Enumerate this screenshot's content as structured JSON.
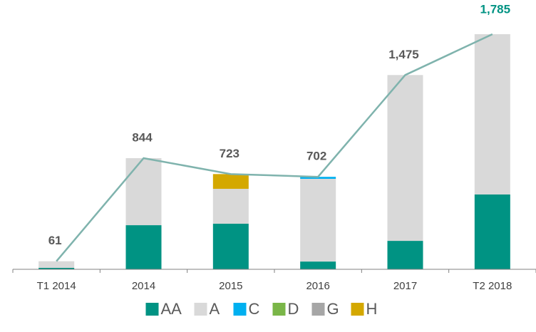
{
  "chart_data": {
    "type": "stacked-bar-line",
    "categories": [
      "T1 2014",
      "2014",
      "2015",
      "2016",
      "2017",
      "T2 2018"
    ],
    "series": [
      {
        "name": "AA",
        "color": "#009383",
        "values": [
          11,
          335,
          346,
          59,
          216,
          568
        ]
      },
      {
        "name": "A",
        "color": "#d9d9d9",
        "values": [
          50,
          509,
          265,
          628,
          1259,
          1217
        ]
      },
      {
        "name": "C",
        "color": "#00b0f0",
        "values": [
          0,
          0,
          0,
          15,
          0,
          0
        ]
      },
      {
        "name": "D",
        "color": "#7ab648",
        "values": [
          0,
          0,
          0,
          0,
          0,
          0
        ]
      },
      {
        "name": "G",
        "color": "#a6a6a6",
        "values": [
          0,
          0,
          0,
          0,
          0,
          0
        ]
      },
      {
        "name": "H",
        "color": "#d4a800",
        "values": [
          0,
          0,
          112,
          0,
          0,
          0
        ]
      }
    ],
    "totals": {
      "color": "#7fb3ad",
      "label_color": "#595959",
      "last_label_color": "#009383",
      "values": [
        61,
        844,
        723,
        702,
        1475,
        1785
      ],
      "value_labels": [
        "61",
        "844",
        "723",
        "702",
        "1,475",
        "1,785"
      ]
    }
  }
}
